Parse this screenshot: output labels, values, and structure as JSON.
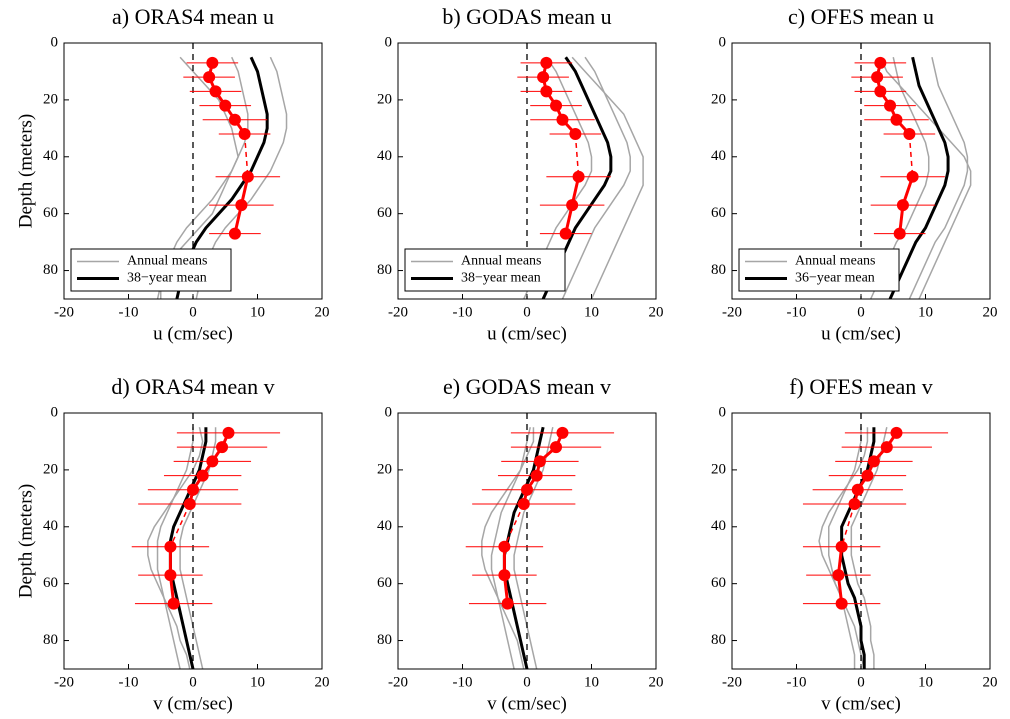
{
  "chart_data": [
    {
      "type": "line",
      "title": "a) ORAS4 mean u",
      "xlabel": "u (cm/sec)",
      "ylabel": "Depth (meters)",
      "xlim": [
        -20,
        20
      ],
      "xticks": [
        -20,
        -10,
        0,
        10,
        20
      ],
      "ylim": [
        0,
        90
      ],
      "yticks": [
        0,
        20,
        40,
        60,
        80
      ],
      "invert_y": true,
      "legend": "lower left",
      "depths": [
        5,
        10,
        15,
        20,
        25,
        30,
        35,
        40,
        45,
        50,
        55,
        60,
        65,
        70,
        75,
        80,
        85,
        90
      ],
      "series": [
        {
          "name": "Annual means",
          "color": "#a6a6a6",
          "values": [
            12,
            13,
            13.5,
            14,
            14.5,
            14.5,
            14,
            13,
            12,
            10.5,
            9,
            7,
            5,
            3.5,
            2.5,
            1.5,
            1,
            0.5
          ]
        },
        {
          "color": "#a6a6a6",
          "values": [
            6,
            7,
            7.5,
            8,
            8.5,
            8.5,
            8,
            7,
            6,
            4.5,
            3,
            1,
            -1,
            -2.5,
            -3.5,
            -4.5,
            -5,
            -5.5
          ]
        },
        {
          "color": "#a6a6a6",
          "values": [
            -2,
            0,
            2,
            4,
            5,
            6,
            6.5,
            7,
            6,
            5,
            4,
            3,
            1,
            -1,
            -3,
            -4,
            -5,
            -5
          ]
        },
        {
          "name": "38−year mean",
          "color": "#000000",
          "values": [
            9,
            10,
            10.5,
            11,
            11.5,
            11.5,
            11,
            10,
            9,
            7.5,
            6,
            4,
            2,
            0.5,
            -0.5,
            -1.5,
            -2,
            -2.5
          ]
        }
      ],
      "observations": {
        "color": "#ff0000",
        "depths": [
          7,
          12,
          17,
          22,
          27,
          32,
          47,
          57,
          67
        ],
        "values": [
          3,
          2.5,
          3.5,
          5,
          6.5,
          8,
          8.5,
          7.5,
          6.5
        ],
        "errors": [
          4,
          4,
          4,
          4,
          5,
          4,
          5,
          5,
          4
        ]
      }
    },
    {
      "type": "line",
      "title": "b) GODAS mean u",
      "xlabel": "u (cm/sec)",
      "xlim": [
        -20,
        20
      ],
      "xticks": [
        -20,
        -10,
        0,
        10,
        20
      ],
      "ylim": [
        0,
        90
      ],
      "yticks": [
        0,
        20,
        40,
        60,
        80
      ],
      "invert_y": true,
      "legend": "lower left",
      "depths": [
        5,
        10,
        15,
        20,
        25,
        30,
        35,
        40,
        45,
        50,
        55,
        60,
        65,
        70,
        75,
        80,
        85,
        90
      ],
      "series": [
        {
          "name": "Annual means",
          "color": "#a6a6a6",
          "values": [
            9,
            10.5,
            11.5,
            12.5,
            13.5,
            14.5,
            15.5,
            16,
            16,
            15,
            13.5,
            12,
            10.5,
            9.5,
            8.5,
            7.5,
            6.5,
            5.5
          ]
        },
        {
          "color": "#a6a6a6",
          "values": [
            3,
            4.5,
            5.5,
            6.5,
            7.5,
            8.5,
            9.5,
            10,
            10,
            9,
            7.5,
            6,
            4.5,
            3.5,
            2.5,
            1.5,
            0.5,
            -0.5
          ]
        },
        {
          "color": "#a6a6a6",
          "values": [
            7,
            9,
            11,
            13,
            15,
            16,
            17,
            18,
            18,
            18,
            17,
            16,
            15,
            14,
            13,
            12,
            11,
            10
          ]
        },
        {
          "name": "38−year mean",
          "color": "#000000",
          "values": [
            6,
            7.5,
            8.5,
            9.5,
            10.5,
            11.5,
            12.5,
            13,
            13,
            12,
            10.5,
            9,
            7.5,
            6.5,
            5.5,
            4.5,
            3.5,
            2.5
          ]
        }
      ],
      "observations": {
        "color": "#ff0000",
        "depths": [
          7,
          12,
          17,
          22,
          27,
          32,
          47,
          57,
          67
        ],
        "values": [
          3,
          2.5,
          3,
          4.5,
          5.5,
          7.5,
          8,
          7,
          6
        ],
        "errors": [
          4,
          4,
          4,
          4,
          5,
          4,
          5,
          5,
          4
        ]
      }
    },
    {
      "type": "line",
      "title": "c) OFES mean u",
      "xlabel": "u (cm/sec)",
      "xlim": [
        -20,
        20
      ],
      "xticks": [
        -20,
        -10,
        0,
        10,
        20
      ],
      "ylim": [
        0,
        90
      ],
      "yticks": [
        0,
        20,
        40,
        60,
        80
      ],
      "invert_y": true,
      "legend": "lower left",
      "depths": [
        5,
        10,
        15,
        20,
        25,
        30,
        35,
        40,
        45,
        50,
        55,
        60,
        65,
        70,
        75,
        80,
        85,
        90
      ],
      "series": [
        {
          "name": "Annual means",
          "color": "#a6a6a6",
          "values": [
            11,
            11.5,
            12,
            13,
            14,
            15,
            16,
            16.5,
            16.5,
            16,
            15,
            14,
            13,
            11.5,
            10.5,
            9.5,
            8.5,
            7.5
          ]
        },
        {
          "color": "#a6a6a6",
          "values": [
            5,
            5.5,
            6,
            7,
            8,
            9,
            10,
            10.5,
            10.5,
            10,
            9,
            8,
            7,
            5.5,
            4.5,
            3.5,
            2.5,
            1.5
          ]
        },
        {
          "color": "#a6a6a6",
          "values": [
            3,
            4,
            6,
            8,
            10,
            12,
            14,
            16,
            17,
            17,
            16,
            15,
            14,
            13,
            12,
            11,
            10,
            9
          ]
        },
        {
          "name": "36−year mean",
          "color": "#000000",
          "values": [
            8,
            8.5,
            9,
            10,
            11,
            12,
            13,
            13.5,
            13.5,
            13,
            12,
            11,
            10,
            8.5,
            7.5,
            6.5,
            5.5,
            4.5
          ]
        }
      ],
      "observations": {
        "color": "#ff0000",
        "depths": [
          7,
          12,
          17,
          22,
          27,
          32,
          47,
          57,
          67
        ],
        "values": [
          3,
          2.5,
          3,
          4.5,
          5.5,
          7.5,
          8,
          6.5,
          6
        ],
        "errors": [
          4,
          4,
          4,
          4,
          5,
          4,
          5,
          5,
          4
        ]
      }
    },
    {
      "type": "line",
      "title": "d) ORAS4 mean v",
      "xlabel": "v (cm/sec)",
      "ylabel": "Depth (meters)",
      "xlim": [
        -20,
        20
      ],
      "xticks": [
        -20,
        -10,
        0,
        10,
        20
      ],
      "ylim": [
        0,
        90
      ],
      "yticks": [
        0,
        20,
        40,
        60,
        80
      ],
      "invert_y": true,
      "depths": [
        5,
        10,
        15,
        20,
        25,
        30,
        35,
        40,
        45,
        50,
        55,
        60,
        65,
        70,
        75,
        80,
        85,
        90
      ],
      "series": [
        {
          "color": "#a6a6a6",
          "values": [
            3.5,
            3.5,
            3,
            2.5,
            1.5,
            0.5,
            -0.5,
            -1.5,
            -2,
            -2,
            -2,
            -1.5,
            -1,
            -0.5,
            0,
            0.5,
            1,
            1.5
          ]
        },
        {
          "color": "#a6a6a6",
          "values": [
            0,
            0,
            -0.5,
            -1,
            -2,
            -3,
            -4,
            -5,
            -5.5,
            -5.5,
            -5.5,
            -5,
            -4.5,
            -4,
            -3.5,
            -3,
            -2.5,
            -2
          ]
        },
        {
          "color": "#a6a6a6",
          "values": [
            1,
            1.5,
            1,
            0,
            -1.5,
            -3,
            -4.5,
            -6,
            -7,
            -7,
            -6.5,
            -5.5,
            -4.5,
            -3.5,
            -2.5,
            -2,
            -1,
            -0.5
          ]
        },
        {
          "color": "#000000",
          "values": [
            2,
            2,
            1.5,
            1,
            0,
            -1,
            -2,
            -3,
            -3.5,
            -3.5,
            -3.5,
            -3,
            -2.5,
            -2,
            -1.5,
            -1,
            -0.5,
            0
          ]
        }
      ],
      "observations": {
        "color": "#ff0000",
        "depths": [
          7,
          12,
          17,
          22,
          27,
          32,
          47,
          57,
          67
        ],
        "values": [
          5.5,
          4.5,
          3,
          1.5,
          0,
          -0.5,
          -3.5,
          -3.5,
          -3
        ],
        "errors": [
          8,
          7,
          6,
          6,
          7,
          8,
          6,
          5,
          6
        ]
      }
    },
    {
      "type": "line",
      "title": "e) GODAS mean v",
      "xlabel": "v (cm/sec)",
      "xlim": [
        -20,
        20
      ],
      "xticks": [
        -20,
        -10,
        0,
        10,
        20
      ],
      "ylim": [
        0,
        90
      ],
      "yticks": [
        0,
        20,
        40,
        60,
        80
      ],
      "invert_y": true,
      "depths": [
        5,
        10,
        15,
        20,
        25,
        30,
        35,
        40,
        45,
        50,
        55,
        60,
        65,
        70,
        75,
        80,
        85,
        90
      ],
      "series": [
        {
          "color": "#a6a6a6",
          "values": [
            4,
            3.5,
            3,
            2.5,
            1.5,
            0.5,
            -0.5,
            -1,
            -1.5,
            -2,
            -2,
            -1.5,
            -1,
            -0.5,
            0,
            0.5,
            1,
            1.5
          ]
        },
        {
          "color": "#a6a6a6",
          "values": [
            0.5,
            0,
            -0.5,
            -1,
            -2,
            -3,
            -4,
            -4.5,
            -5,
            -5.5,
            -5.5,
            -5,
            -4.5,
            -4,
            -3.5,
            -3,
            -2.5,
            -2
          ]
        },
        {
          "color": "#a6a6a6",
          "values": [
            1,
            1,
            0,
            -1,
            -2.5,
            -4,
            -5.5,
            -6.5,
            -7,
            -7,
            -6.5,
            -5.5,
            -4.5,
            -3.5,
            -2.5,
            -1.5,
            -1,
            -0.5
          ]
        },
        {
          "color": "#000000",
          "values": [
            2.5,
            2,
            1.5,
            1,
            0,
            -1,
            -2,
            -2.5,
            -3,
            -3.5,
            -3.5,
            -3,
            -2.5,
            -2,
            -1.5,
            -1,
            -0.5,
            0
          ]
        }
      ],
      "observations": {
        "color": "#ff0000",
        "depths": [
          7,
          12,
          17,
          22,
          27,
          32,
          47,
          57,
          67
        ],
        "values": [
          5.5,
          4.5,
          2,
          1.5,
          0,
          -0.5,
          -3.5,
          -3.5,
          -3
        ],
        "errors": [
          8,
          7,
          6,
          6,
          7,
          8,
          6,
          5,
          6
        ]
      }
    },
    {
      "type": "line",
      "title": "f) OFES mean v",
      "xlabel": "v (cm/sec)",
      "xlim": [
        -20,
        20
      ],
      "xticks": [
        -20,
        -10,
        0,
        10,
        20
      ],
      "ylim": [
        0,
        90
      ],
      "yticks": [
        0,
        20,
        40,
        60,
        80
      ],
      "invert_y": true,
      "depths": [
        5,
        10,
        15,
        20,
        25,
        30,
        35,
        40,
        45,
        50,
        55,
        60,
        65,
        70,
        75,
        80,
        85,
        90
      ],
      "series": [
        {
          "color": "#a6a6a6",
          "values": [
            4,
            3.5,
            3,
            2.5,
            1.5,
            0.5,
            -0.5,
            -1.5,
            -1.5,
            -1.5,
            -1,
            -0.5,
            0.5,
            1,
            1.5,
            1.5,
            2,
            2
          ]
        },
        {
          "color": "#a6a6a6",
          "values": [
            0,
            0,
            -0.5,
            -1,
            -2,
            -3,
            -4,
            -5,
            -5,
            -5,
            -4.5,
            -4,
            -3,
            -2.5,
            -2,
            -1.5,
            -1,
            -1
          ]
        },
        {
          "color": "#a6a6a6",
          "values": [
            1,
            1,
            0.5,
            -0.5,
            -2,
            -3.5,
            -5,
            -6,
            -6.5,
            -6,
            -5,
            -4,
            -3,
            -2,
            -1,
            -0.5,
            0,
            0.5
          ]
        },
        {
          "color": "#000000",
          "values": [
            2,
            2,
            1.5,
            1,
            0,
            -1,
            -2,
            -3,
            -3,
            -3,
            -2.5,
            -2,
            -1,
            -0.5,
            0,
            0,
            0.5,
            0.5
          ]
        }
      ],
      "observations": {
        "color": "#ff0000",
        "depths": [
          7,
          12,
          17,
          22,
          27,
          32,
          47,
          57,
          67
        ],
        "values": [
          5.5,
          4,
          2,
          1,
          -0.5,
          -1,
          -3,
          -3.5,
          -3
        ],
        "errors": [
          8,
          7,
          6,
          6,
          7,
          8,
          6,
          5,
          6
        ]
      }
    }
  ]
}
